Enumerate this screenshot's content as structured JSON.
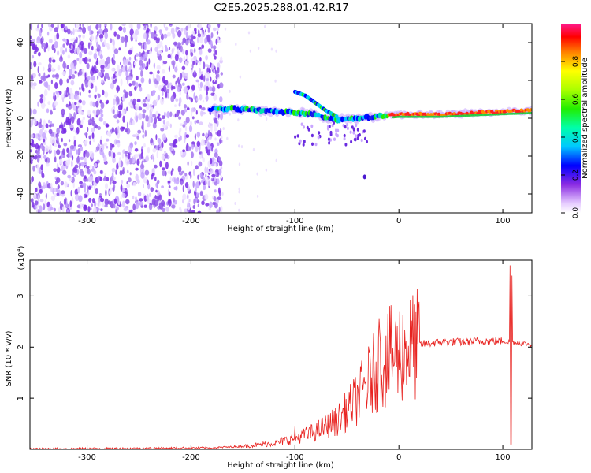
{
  "title": "C2E5.2025.288.01.42.R17",
  "chart_data": [
    {
      "type": "heatmap",
      "xlabel": "Height of straight line (km)",
      "ylabel": "Frequency (Hz)",
      "xlim": [
        -355,
        128
      ],
      "ylim": [
        -50,
        50
      ],
      "xticks": [
        -300,
        -200,
        -100,
        0,
        100
      ],
      "yticks": [
        -40,
        -20,
        0,
        20,
        40
      ],
      "colorbar": {
        "label": "Normalized spectral amplitude",
        "range": [
          0,
          1
        ],
        "ticks": [
          "0.0",
          "0.2",
          "0.4",
          "0.6",
          "0.8"
        ]
      },
      "noise_region_x": [
        -355,
        -178
      ],
      "ridge": [
        {
          "x": -180,
          "f": 5
        },
        {
          "x": -160,
          "f": 5
        },
        {
          "x": -130,
          "f": 4
        },
        {
          "x": -100,
          "f": 3
        },
        {
          "x": -80,
          "f": 2
        },
        {
          "x": -60,
          "f": -1
        },
        {
          "x": -40,
          "f": 0
        },
        {
          "x": -20,
          "f": 1
        },
        {
          "x": 0,
          "f": 2
        },
        {
          "x": 40,
          "f": 2
        },
        {
          "x": 80,
          "f": 3
        },
        {
          "x": 128,
          "f": 4
        }
      ],
      "branch": [
        {
          "x": -100,
          "f": 14
        },
        {
          "x": -90,
          "f": 12
        },
        {
          "x": -80,
          "f": 8
        },
        {
          "x": -70,
          "f": 4
        },
        {
          "x": -60,
          "f": 1
        }
      ],
      "outlier": {
        "x": -33,
        "f": -31
      }
    },
    {
      "type": "line",
      "xlabel": "Height of straight line (km)",
      "ylabel": "SNR (10 * v/v)",
      "multiplier": "(x10",
      "multiplier_exp": "4",
      "multiplier_close": ")",
      "xlim": [
        -355,
        128
      ],
      "ylim": [
        0,
        3.7
      ],
      "xticks": [
        -300,
        -200,
        -100,
        0,
        100
      ],
      "yticks": [
        1,
        2,
        3
      ],
      "series": [
        {
          "color": "#e8221f",
          "envelope": [
            [
              -355,
              0.01
            ],
            [
              -250,
              0.02
            ],
            [
              -180,
              0.03
            ],
            [
              -150,
              0.06
            ],
            [
              -120,
              0.12
            ],
            [
              -100,
              0.22
            ],
            [
              -90,
              0.28
            ],
            [
              -80,
              0.35
            ],
            [
              -60,
              0.55
            ],
            [
              -50,
              0.75
            ],
            [
              -40,
              1.0
            ],
            [
              -30,
              1.3
            ],
            [
              -20,
              1.6
            ],
            [
              -10,
              1.8
            ],
            [
              0,
              1.9
            ],
            [
              10,
              2.0
            ],
            [
              20,
              2.05
            ],
            [
              40,
              2.1
            ],
            [
              60,
              2.1
            ],
            [
              80,
              2.12
            ],
            [
              100,
              2.12
            ],
            [
              105,
              2.1
            ],
            [
              115,
              2.08
            ],
            [
              128,
              2.05
            ]
          ],
          "spikes": [
            {
              "x": -19,
              "y": 2.55
            },
            {
              "x": -100,
              "y": 0.45
            },
            {
              "x": -90,
              "y": 0.38
            },
            {
              "x": 107,
              "y": 3.6
            },
            {
              "x": 108,
              "y": 0.1
            },
            {
              "x": 109,
              "y": 3.4
            }
          ]
        }
      ]
    }
  ]
}
